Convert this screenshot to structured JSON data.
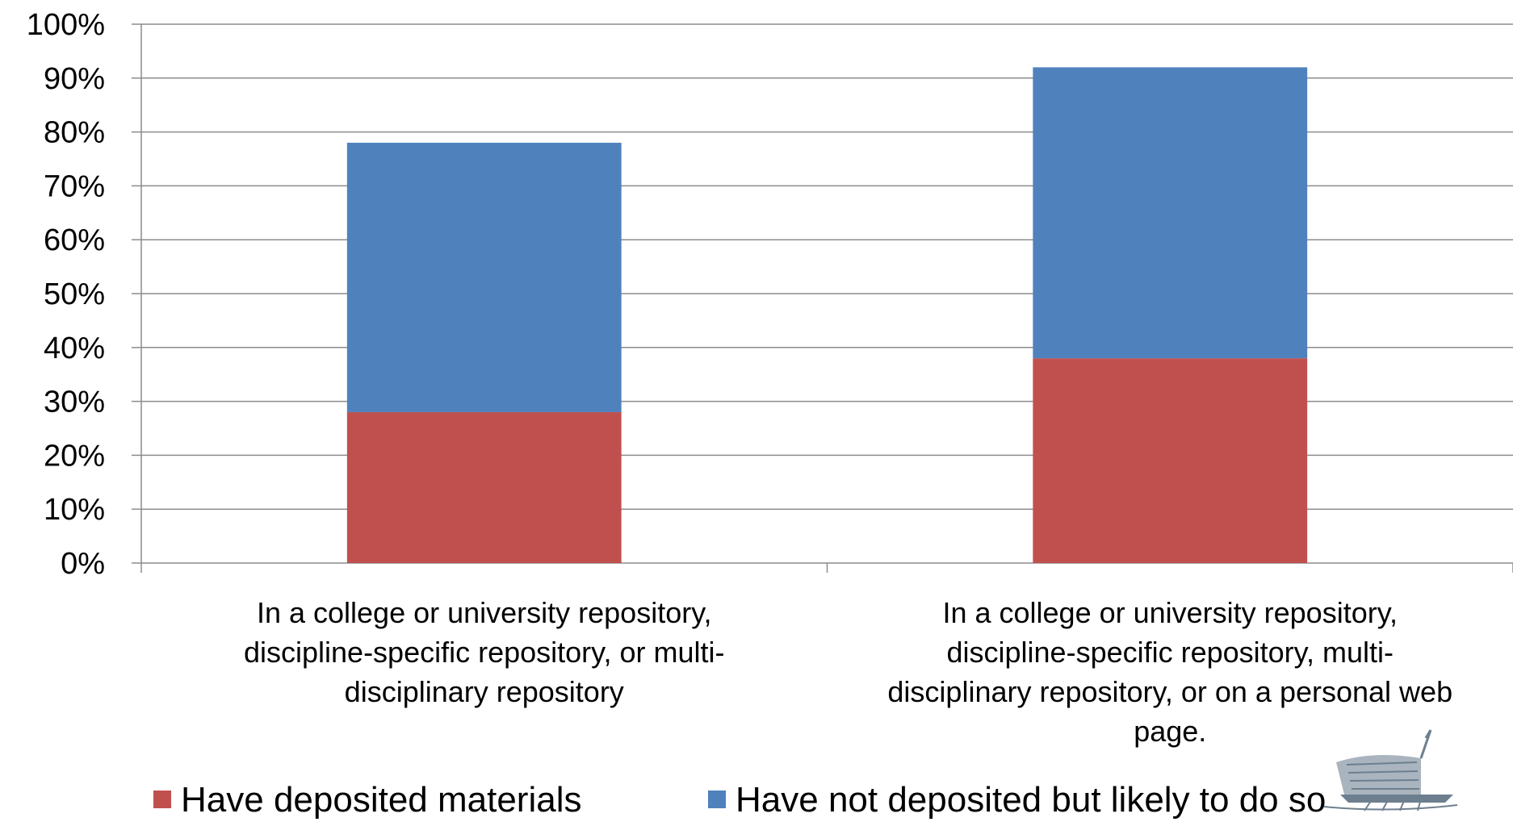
{
  "chart_data": {
    "type": "bar",
    "stacked": true,
    "categories": [
      [
        "In a college or university repository,",
        "discipline-specific repository, or multi-",
        "disciplinary repository"
      ],
      [
        "In a college or university repository,",
        "discipline-specific repository, multi-",
        "disciplinary repository, or on a personal web",
        "page."
      ]
    ],
    "series": [
      {
        "name": "Have deposited materials",
        "color": "#c0504d",
        "values": [
          28,
          38
        ]
      },
      {
        "name": "Have not deposited but likely to do so",
        "color": "#4f81bd",
        "values": [
          50,
          54
        ]
      }
    ],
    "ylim": [
      0,
      100
    ],
    "yticks": [
      "0%",
      "10%",
      "20%",
      "30%",
      "40%",
      "50%",
      "60%",
      "70%",
      "80%",
      "90%",
      "100%"
    ],
    "grid": true,
    "legend": "bottom",
    "title": "",
    "xlabel": "",
    "ylabel": ""
  },
  "logo": {
    "name": "ship-logo-icon"
  }
}
